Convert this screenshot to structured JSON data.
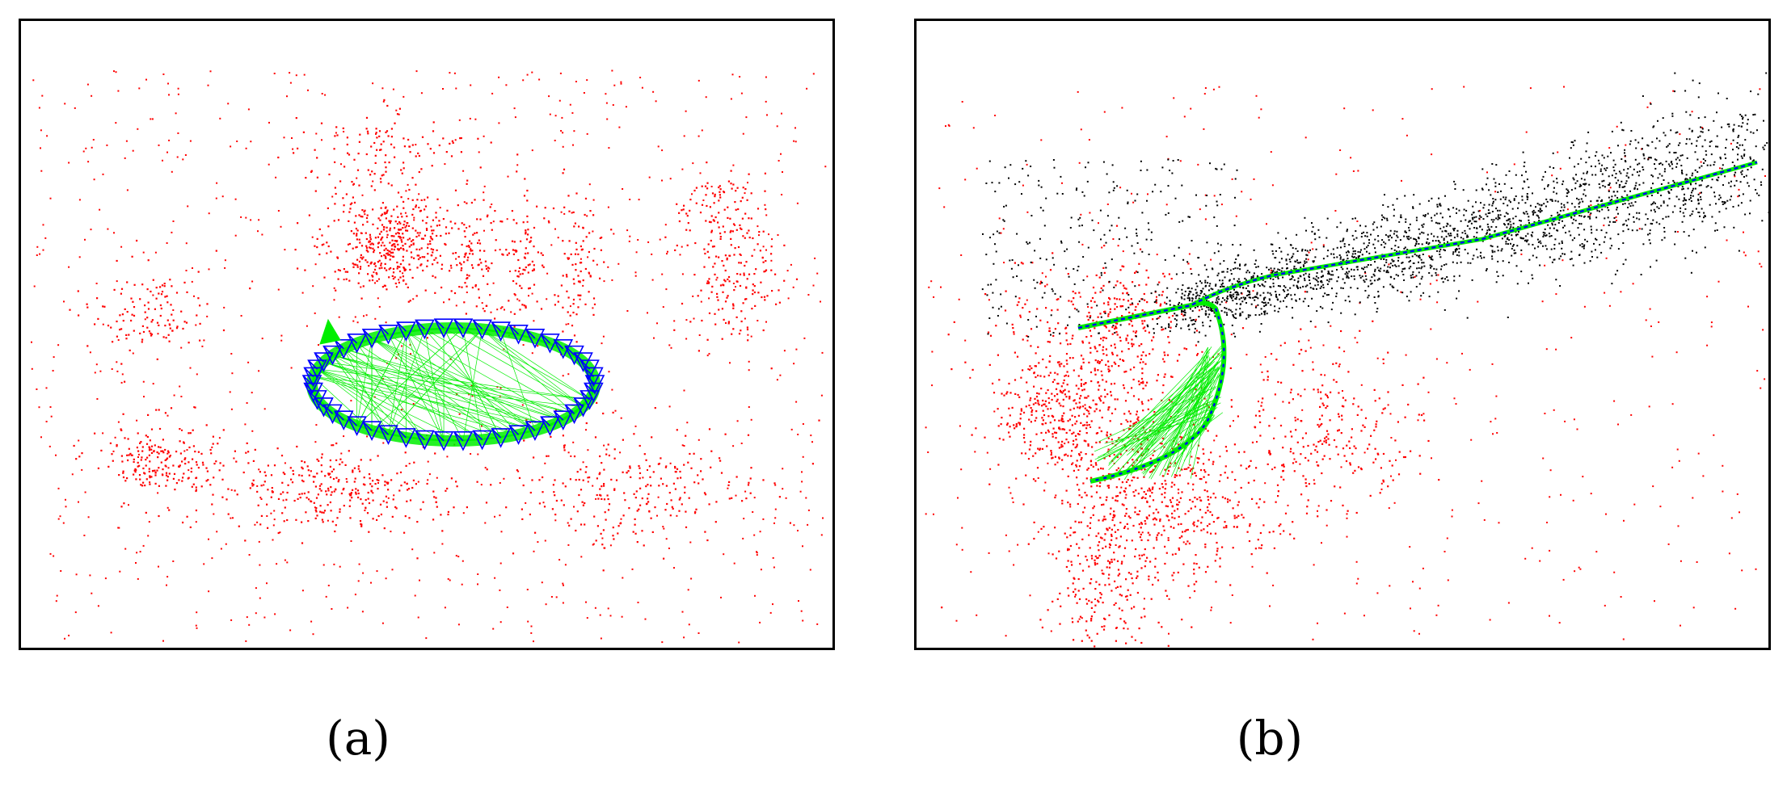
{
  "figure": {
    "panels": [
      {
        "id": "a",
        "caption": "(a)"
      },
      {
        "id": "b",
        "caption": "(b)"
      }
    ],
    "colors": {
      "map_points": "#ff0000",
      "other_points": "#000000",
      "keyframes": "#0000ff",
      "covisibility": "#00ee00"
    }
  }
}
